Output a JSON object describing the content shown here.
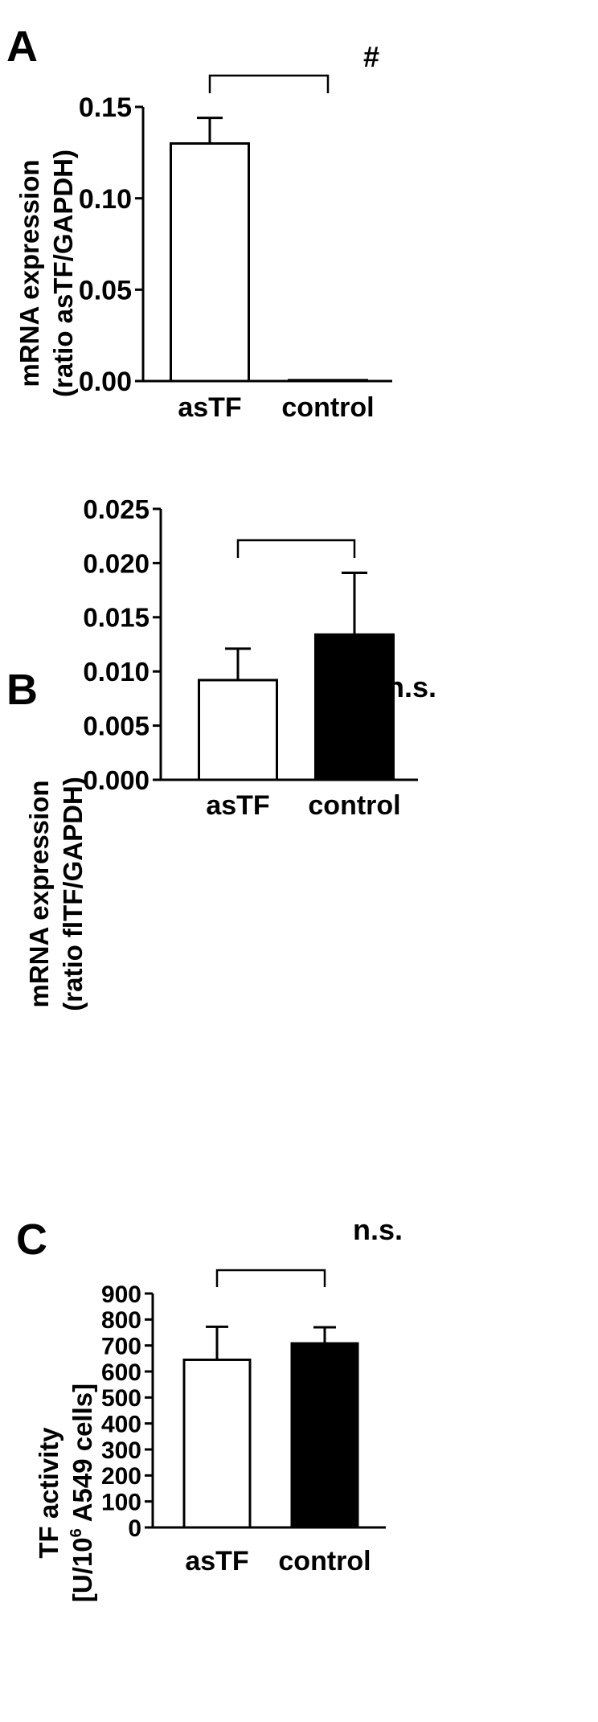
{
  "chart_data": [
    {
      "panel": "A",
      "type": "bar",
      "ylabel_lines": [
        "mRNA expression",
        "(ratio asTF/GAPDH)"
      ],
      "categories": [
        "asTF",
        "control"
      ],
      "values": [
        0.13,
        0.0005
      ],
      "errors": [
        0.014,
        0.0
      ],
      "bar_fill": [
        "#ffffff",
        "#000000"
      ],
      "ylim": [
        0,
        0.15
      ],
      "yticks": [
        0.0,
        0.05,
        0.1,
        0.15
      ],
      "ytick_labels": [
        "0.00",
        "0.05",
        "0.10",
        "0.15"
      ],
      "significance": "#"
    },
    {
      "panel": "B",
      "type": "bar",
      "ylabel_lines": [
        "mRNA expression",
        "(ratio flTF/GAPDH)"
      ],
      "categories": [
        "asTF",
        "control"
      ],
      "values": [
        0.0092,
        0.0134
      ],
      "errors": [
        0.0029,
        0.0057
      ],
      "bar_fill": [
        "#ffffff",
        "#000000"
      ],
      "ylim": [
        0,
        0.025
      ],
      "yticks": [
        0.0,
        0.005,
        0.01,
        0.015,
        0.02,
        0.025
      ],
      "ytick_labels": [
        "0.000",
        "0.005",
        "0.010",
        "0.015",
        "0.020",
        "0.025"
      ],
      "significance": "n.s."
    },
    {
      "panel": "C",
      "type": "bar",
      "ylabel_lines": [
        "TF activity",
        "[U/10",
        "6",
        " A549 cells]"
      ],
      "categories": [
        "asTF",
        "control"
      ],
      "values": [
        645,
        708
      ],
      "errors": [
        127,
        62
      ],
      "bar_fill": [
        "#ffffff",
        "#000000"
      ],
      "ylim": [
        0,
        900
      ],
      "yticks": [
        0,
        100,
        200,
        300,
        400,
        500,
        600,
        700,
        800,
        900
      ],
      "ytick_labels": [
        "0",
        "100",
        "200",
        "300",
        "400",
        "500",
        "600",
        "700",
        "800",
        "900"
      ],
      "significance": "n.s."
    }
  ]
}
